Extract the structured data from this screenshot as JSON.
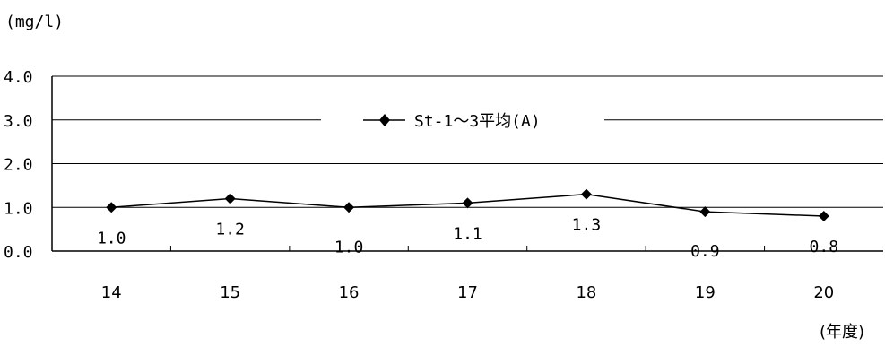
{
  "chart_data": {
    "type": "line",
    "ylabel": "(mg/l)",
    "xlabel": "(年度)",
    "categories": [
      "14",
      "15",
      "16",
      "17",
      "18",
      "19",
      "20"
    ],
    "yticks": [
      "0.0",
      "1.0",
      "2.0",
      "3.0",
      "4.0"
    ],
    "ylim": [
      0,
      4
    ],
    "grid": true,
    "legend_position": "top-center",
    "series": [
      {
        "name": "St-1～3平均(A)",
        "values": [
          1.0,
          1.2,
          1.0,
          1.1,
          1.3,
          0.9,
          0.8
        ],
        "labels": [
          "1.0",
          "1.2",
          "1.0",
          "1.1",
          "1.3",
          "0.9",
          "0.8"
        ],
        "color": "#000000",
        "marker": "diamond"
      }
    ]
  }
}
